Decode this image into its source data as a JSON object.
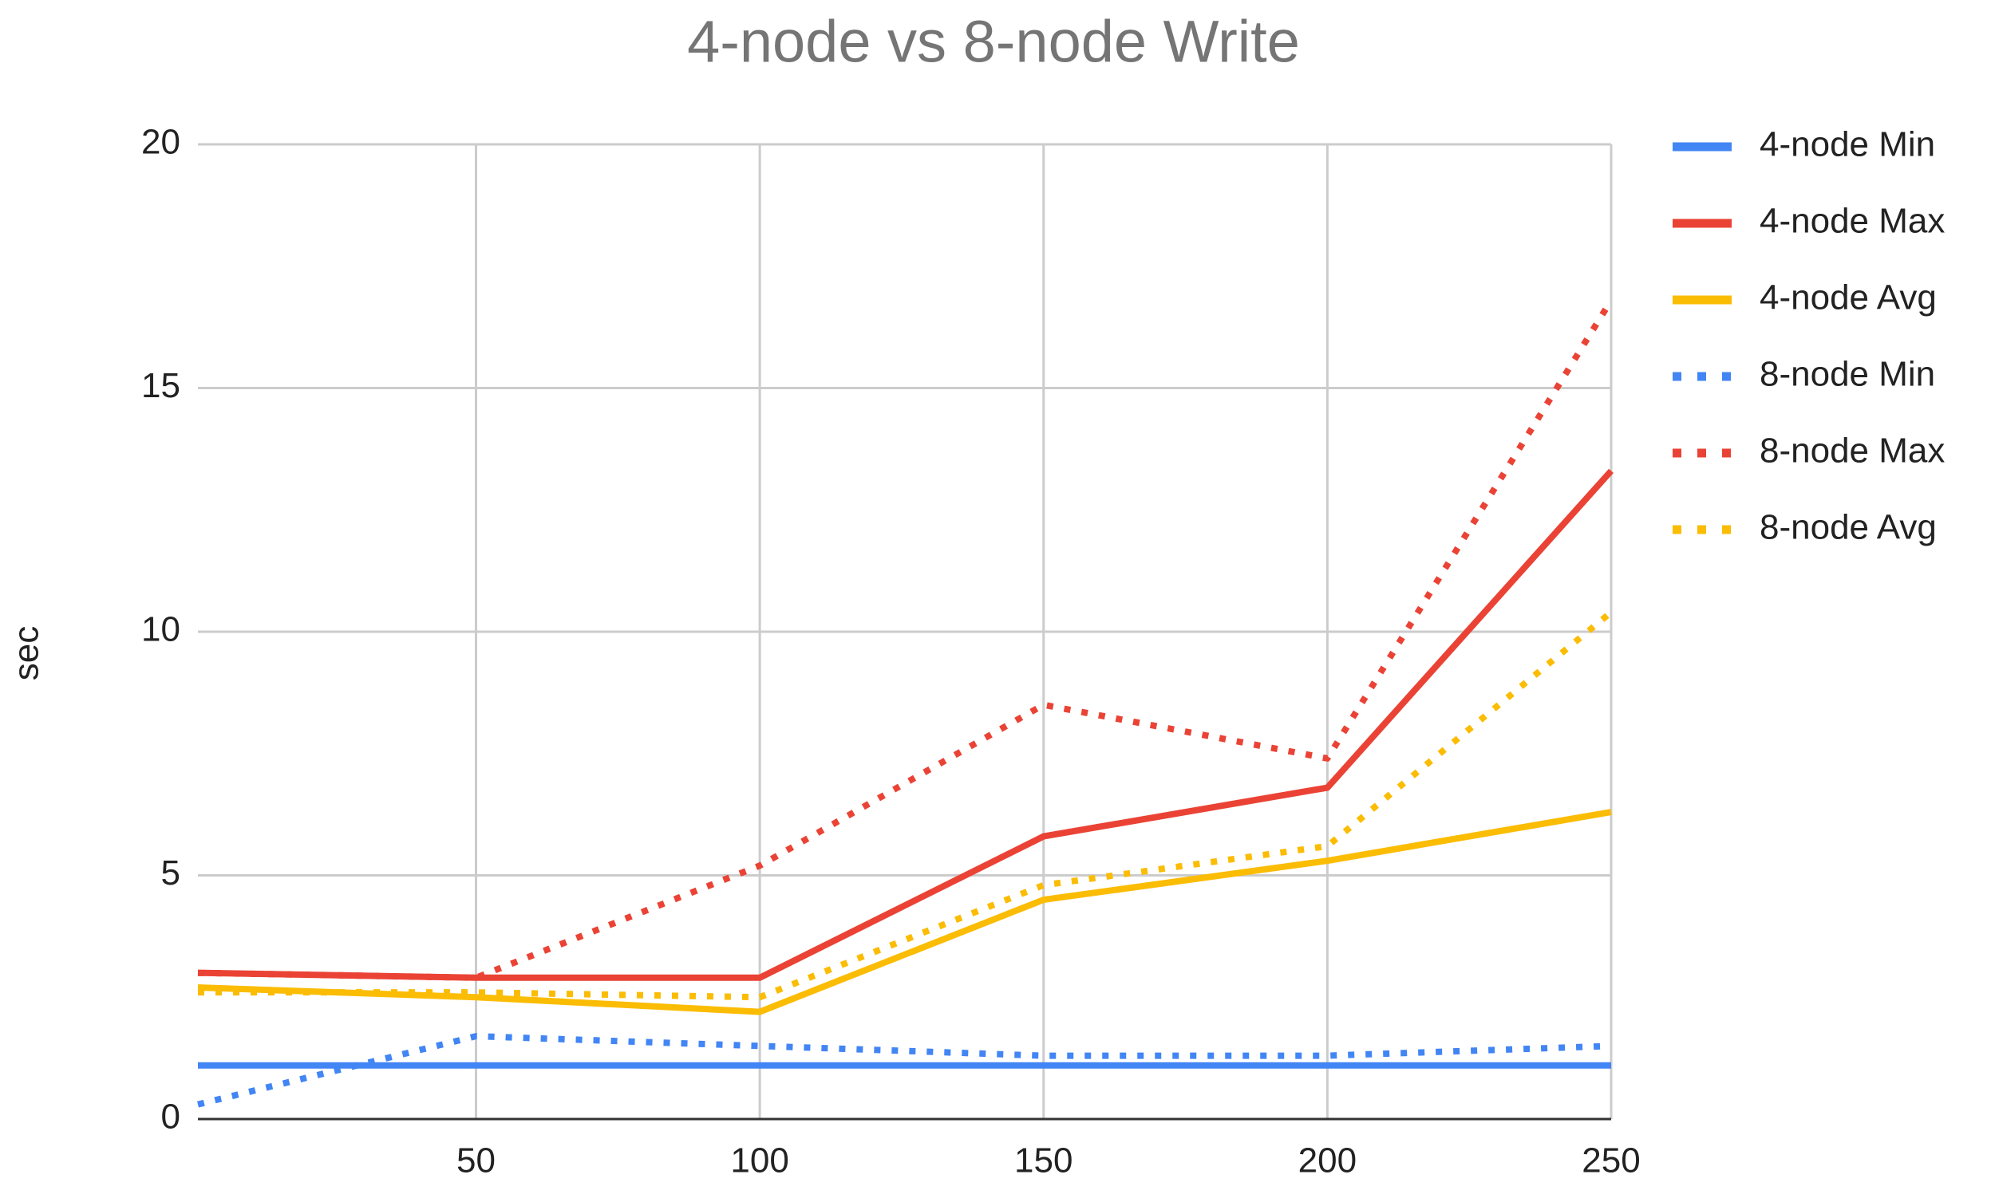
{
  "chart_data": {
    "type": "line",
    "title": "4-node vs 8-node Write",
    "y_label": "sec",
    "x": [
      1,
      50,
      100,
      150,
      200,
      250
    ],
    "xlim": [
      1,
      250
    ],
    "xticks": [
      50,
      100,
      150,
      200,
      250
    ],
    "ylim": [
      0,
      20
    ],
    "yticks": [
      0,
      5,
      10,
      15,
      20
    ],
    "grid": true,
    "legend": "right",
    "series": [
      {
        "name": "4-node Min",
        "color": "#4285f4",
        "dotted": false,
        "values": [
          1.1,
          1.1,
          1.1,
          1.1,
          1.1,
          1.1
        ]
      },
      {
        "name": "4-node Max",
        "color": "#ea4335",
        "dotted": false,
        "values": [
          3.0,
          2.9,
          2.9,
          5.8,
          6.8,
          13.3
        ]
      },
      {
        "name": "4-node Avg",
        "color": "#fbbc04",
        "dotted": false,
        "values": [
          2.7,
          2.5,
          2.2,
          4.5,
          5.3,
          6.3
        ]
      },
      {
        "name": "8-node Min",
        "color": "#4285f4",
        "dotted": true,
        "values": [
          0.3,
          1.7,
          1.5,
          1.3,
          1.3,
          1.5
        ]
      },
      {
        "name": "8-node Max",
        "color": "#ea4335",
        "dotted": true,
        "values": [
          3.0,
          2.9,
          5.2,
          8.5,
          7.4,
          16.8
        ]
      },
      {
        "name": "8-node Avg",
        "color": "#fbbc04",
        "dotted": true,
        "values": [
          2.6,
          2.6,
          2.5,
          4.8,
          5.6,
          10.4
        ]
      }
    ]
  }
}
